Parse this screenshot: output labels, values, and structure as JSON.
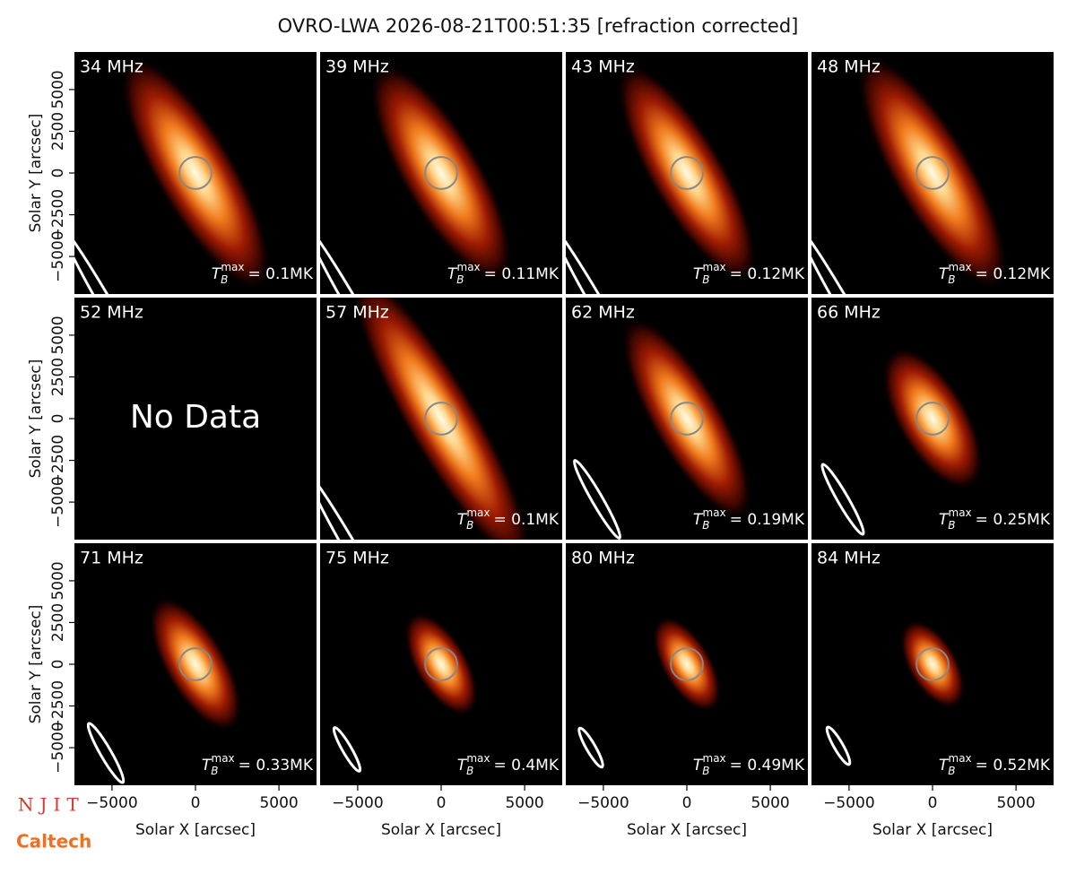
{
  "chart_data": {
    "type": "image-grid",
    "title": "OVRO-LWA 2026-08-21T00:51:35 [refraction corrected]",
    "xlabel": "Solar X [arcsec]",
    "ylabel": "Solar Y [arcsec]",
    "xlim": [
      -7250,
      7250
    ],
    "ylim": [
      -7250,
      7250
    ],
    "xticks": [
      {
        "value": -5000,
        "label": "−5000"
      },
      0,
      5000
    ],
    "yticks": [
      {
        "value": -5000,
        "label": "−5000"
      },
      {
        "value": -2500,
        "label": "−2500"
      },
      0,
      2500,
      5000
    ],
    "tmax_symbol": "T",
    "tmax_sub": "B",
    "tmax_sup": "max",
    "panels": [
      {
        "label": "34 MHz",
        "tmax": "= 0.1MK"
      },
      {
        "label": "39 MHz",
        "tmax": "= 0.11MK"
      },
      {
        "label": "43 MHz",
        "tmax": "= 0.12MK"
      },
      {
        "label": "48 MHz",
        "tmax": "= 0.12MK"
      },
      {
        "label": "52 MHz",
        "note": "No Data"
      },
      {
        "label": "57 MHz",
        "tmax": "= 0.1MK"
      },
      {
        "label": "62 MHz",
        "tmax": "= 0.19MK"
      },
      {
        "label": "66 MHz",
        "tmax": "= 0.25MK"
      },
      {
        "label": "71 MHz",
        "tmax": "= 0.33MK"
      },
      {
        "label": "75 MHz",
        "tmax": "= 0.4MK"
      },
      {
        "label": "80 MHz",
        "tmax": "= 0.49MK"
      },
      {
        "label": "84 MHz",
        "tmax": "= 0.52MK"
      }
    ],
    "logos": [
      "NJIT",
      "Caltech"
    ]
  }
}
